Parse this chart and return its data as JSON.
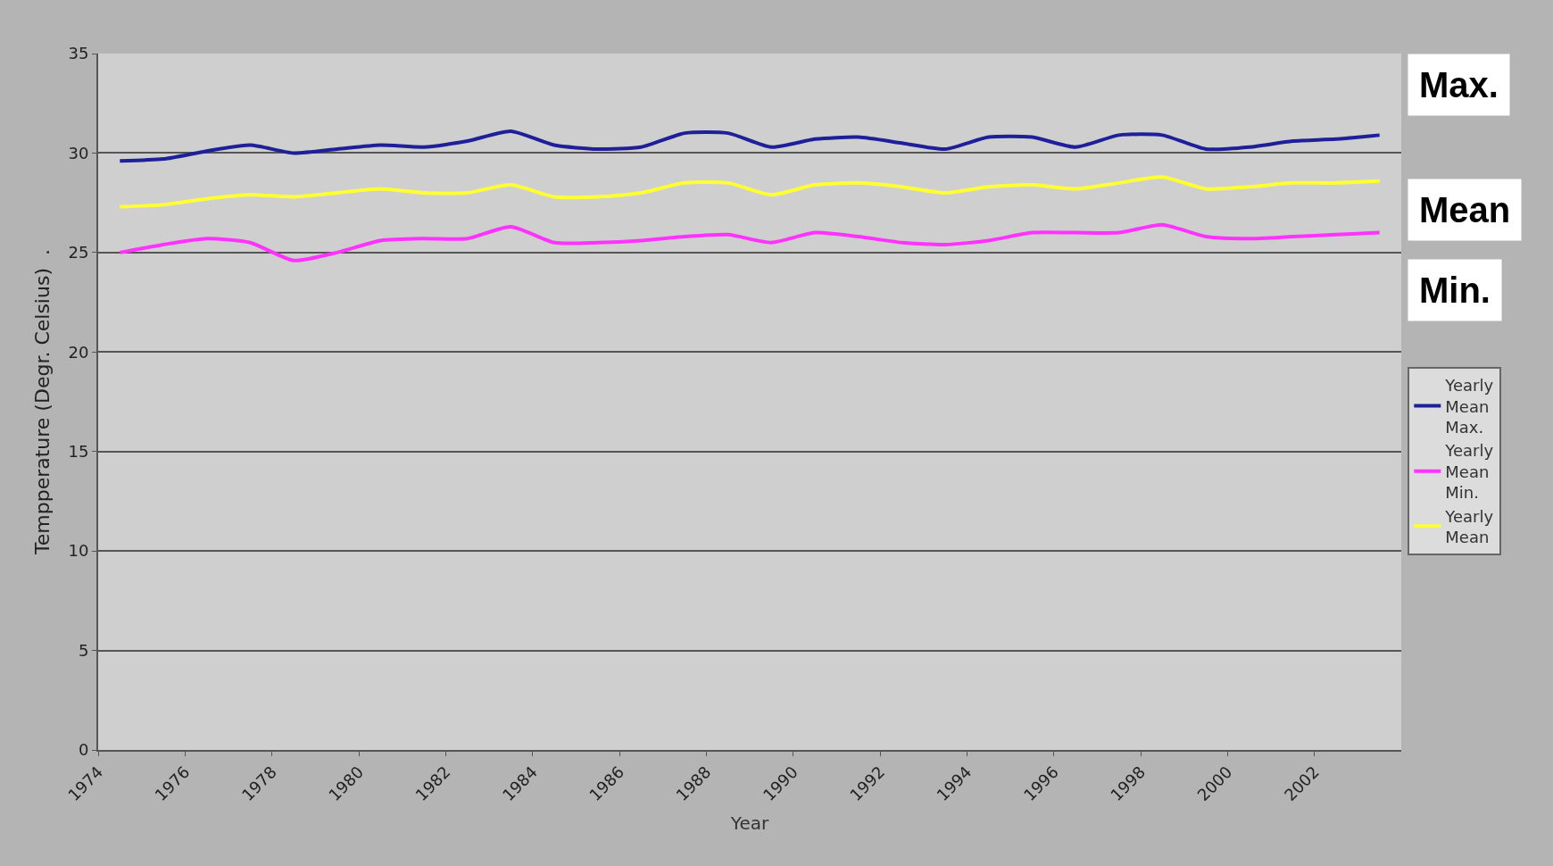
{
  "chart_data": {
    "type": "line",
    "xlabel": "Year",
    "ylabel": "Tempperature (Degr. Celsius)  .",
    "x": [
      1974.5,
      1975.5,
      1976.5,
      1977.5,
      1978.5,
      1979.5,
      1980.5,
      1981.5,
      1982.5,
      1983.5,
      1984.5,
      1985.5,
      1986.5,
      1987.5,
      1988.5,
      1989.5,
      1990.5,
      1991.5,
      1992.5,
      1993.5,
      1994.5,
      1995.5,
      1996.5,
      1997.5,
      1998.5,
      1999.5,
      2000.5,
      2001.5,
      2002.5,
      2003.5
    ],
    "series": [
      {
        "name": "Yearly Mean Max.",
        "color": "#1f1f9a",
        "values": [
          29.6,
          29.7,
          30.1,
          30.4,
          30.0,
          30.2,
          30.4,
          30.3,
          30.6,
          31.1,
          30.4,
          30.2,
          30.3,
          31.0,
          31.0,
          30.3,
          30.7,
          30.8,
          30.5,
          30.2,
          30.8,
          30.8,
          30.3,
          30.9,
          30.9,
          30.2,
          30.3,
          30.6,
          30.7,
          30.9
        ]
      },
      {
        "name": "Yearly Mean Min.",
        "color": "#ff33ff",
        "values": [
          25.0,
          25.4,
          25.7,
          25.5,
          24.6,
          25.0,
          25.6,
          25.7,
          25.7,
          26.3,
          25.5,
          25.5,
          25.6,
          25.8,
          25.9,
          25.5,
          26.0,
          25.8,
          25.5,
          25.4,
          25.6,
          26.0,
          26.0,
          26.0,
          26.4,
          25.8,
          25.7,
          25.8,
          25.9,
          26.0
        ]
      },
      {
        "name": "Yearly Mean",
        "color": "#ffff33",
        "values": [
          27.3,
          27.4,
          27.7,
          27.9,
          27.8,
          28.0,
          28.2,
          28.0,
          28.0,
          28.4,
          27.8,
          27.8,
          28.0,
          28.5,
          28.5,
          27.9,
          28.4,
          28.5,
          28.3,
          28.0,
          28.3,
          28.4,
          28.2,
          28.5,
          28.8,
          28.2,
          28.3,
          28.5,
          28.5,
          28.6
        ]
      }
    ],
    "xlim": [
      1974,
      2004
    ],
    "xticks": [
      1974,
      1976,
      1978,
      1980,
      1982,
      1984,
      1986,
      1988,
      1990,
      1992,
      1994,
      1996,
      1998,
      2000,
      2002
    ],
    "ylim": [
      0,
      35
    ],
    "yticks": [
      0,
      5,
      10,
      15,
      20,
      25,
      30,
      35
    ],
    "annotations": [
      "Max.",
      "Mean",
      "Min."
    ],
    "grid": "y",
    "legend": "right",
    "marker": "none",
    "line_style": "solid"
  }
}
